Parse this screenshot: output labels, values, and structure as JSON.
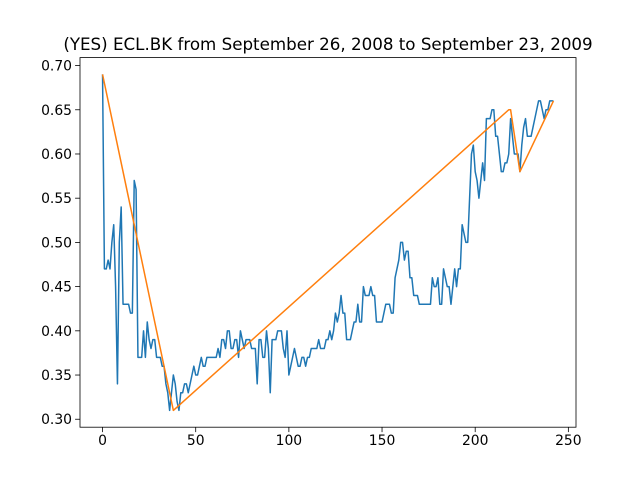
{
  "chart_data": {
    "type": "line",
    "title": "(YES) ECL.BK from September 26, 2008 to September 23, 2009",
    "xlim": [
      -12.1,
      254.1
    ],
    "xticks": [
      0,
      50,
      100,
      150,
      200,
      250
    ],
    "ylim": [
      0.291,
      0.709
    ],
    "yticks": [
      {
        "value": 0.3,
        "label": "0.30"
      },
      0.35,
      {
        "value": 0.4,
        "label": "0.40"
      },
      0.45,
      {
        "value": 0.5,
        "label": "0.50"
      },
      0.55,
      {
        "value": 0.6,
        "label": "0.60"
      },
      0.65,
      {
        "value": 0.7,
        "label": "0.70"
      }
    ],
    "series": [
      {
        "color": "#1f77b4",
        "x": [
          0,
          1,
          2,
          3,
          4,
          5,
          6,
          7,
          8,
          9,
          10,
          11,
          12,
          13,
          14,
          15,
          16,
          17,
          18,
          19,
          20,
          21,
          22,
          23,
          24,
          25,
          26,
          27,
          28,
          29,
          30,
          31,
          32,
          33,
          34,
          35,
          36,
          37,
          38,
          39,
          40,
          41,
          42,
          43,
          44,
          45,
          46,
          47,
          48,
          49,
          50,
          51,
          52,
          53,
          54,
          55,
          56,
          57,
          58,
          59,
          60,
          61,
          62,
          63,
          64,
          65,
          66,
          67,
          68,
          69,
          70,
          71,
          72,
          73,
          74,
          75,
          76,
          77,
          78,
          79,
          80,
          81,
          82,
          83,
          84,
          85,
          86,
          87,
          88,
          89,
          90,
          91,
          92,
          93,
          94,
          95,
          96,
          97,
          98,
          99,
          100,
          101,
          102,
          103,
          104,
          105,
          106,
          107,
          108,
          109,
          110,
          111,
          112,
          113,
          114,
          115,
          116,
          117,
          118,
          119,
          120,
          121,
          122,
          123,
          124,
          125,
          126,
          127,
          128,
          129,
          130,
          131,
          132,
          133,
          134,
          135,
          136,
          137,
          138,
          139,
          140,
          141,
          142,
          143,
          144,
          145,
          146,
          147,
          148,
          149,
          150,
          151,
          152,
          153,
          154,
          155,
          156,
          157,
          158,
          159,
          160,
          161,
          162,
          163,
          164,
          165,
          166,
          167,
          168,
          169,
          170,
          171,
          172,
          173,
          174,
          175,
          176,
          177,
          178,
          179,
          180,
          181,
          182,
          183,
          184,
          185,
          186,
          187,
          188,
          189,
          190,
          191,
          192,
          193,
          194,
          195,
          196,
          197,
          198,
          199,
          200,
          201,
          202,
          203,
          204,
          205,
          206,
          207,
          208,
          209,
          210,
          211,
          212,
          213,
          214,
          215,
          216,
          217,
          218,
          219,
          220,
          221,
          222,
          223,
          224,
          225,
          226,
          227,
          228,
          229,
          230,
          231,
          232,
          233,
          234,
          235,
          236,
          237,
          238,
          239,
          240,
          241,
          242
        ],
        "values": [
          0.69,
          0.47,
          0.47,
          0.48,
          0.47,
          0.5,
          0.52,
          0.45,
          0.34,
          0.5,
          0.54,
          0.43,
          0.43,
          0.43,
          0.43,
          0.42,
          0.42,
          0.57,
          0.56,
          0.37,
          0.37,
          0.37,
          0.4,
          0.37,
          0.41,
          0.39,
          0.38,
          0.39,
          0.39,
          0.37,
          0.37,
          0.37,
          0.36,
          0.36,
          0.34,
          0.33,
          0.31,
          0.33,
          0.35,
          0.34,
          0.32,
          0.31,
          0.33,
          0.33,
          0.34,
          0.34,
          0.33,
          0.34,
          0.35,
          0.36,
          0.35,
          0.35,
          0.36,
          0.37,
          0.36,
          0.36,
          0.37,
          0.37,
          0.37,
          0.37,
          0.37,
          0.37,
          0.38,
          0.37,
          0.39,
          0.39,
          0.38,
          0.4,
          0.4,
          0.38,
          0.38,
          0.39,
          0.39,
          0.37,
          0.4,
          0.39,
          0.38,
          0.39,
          0.39,
          0.39,
          0.38,
          0.38,
          0.38,
          0.34,
          0.39,
          0.39,
          0.37,
          0.37,
          0.4,
          0.38,
          0.33,
          0.39,
          0.39,
          0.39,
          0.4,
          0.4,
          0.4,
          0.38,
          0.37,
          0.4,
          0.35,
          0.36,
          0.37,
          0.38,
          0.37,
          0.36,
          0.36,
          0.37,
          0.37,
          0.36,
          0.37,
          0.37,
          0.38,
          0.38,
          0.38,
          0.38,
          0.39,
          0.38,
          0.38,
          0.38,
          0.39,
          0.39,
          0.4,
          0.39,
          0.4,
          0.42,
          0.41,
          0.42,
          0.44,
          0.42,
          0.42,
          0.39,
          0.39,
          0.39,
          0.4,
          0.41,
          0.41,
          0.43,
          0.41,
          0.41,
          0.45,
          0.44,
          0.44,
          0.44,
          0.45,
          0.44,
          0.44,
          0.41,
          0.41,
          0.41,
          0.41,
          0.42,
          0.43,
          0.43,
          0.43,
          0.42,
          0.42,
          0.46,
          0.47,
          0.48,
          0.5,
          0.5,
          0.48,
          0.49,
          0.49,
          0.46,
          0.46,
          0.44,
          0.44,
          0.44,
          0.43,
          0.43,
          0.43,
          0.43,
          0.43,
          0.43,
          0.43,
          0.46,
          0.45,
          0.45,
          0.46,
          0.43,
          0.43,
          0.47,
          0.46,
          0.45,
          0.45,
          0.43,
          0.45,
          0.47,
          0.45,
          0.47,
          0.47,
          0.52,
          0.51,
          0.5,
          0.5,
          0.55,
          0.6,
          0.61,
          0.58,
          0.57,
          0.55,
          0.57,
          0.59,
          0.57,
          0.64,
          0.64,
          0.64,
          0.65,
          0.65,
          0.62,
          0.62,
          0.6,
          0.58,
          0.58,
          0.59,
          0.59,
          0.6,
          0.64,
          0.62,
          0.6,
          0.6,
          0.6,
          0.58,
          0.61,
          0.63,
          0.64,
          0.62,
          0.62,
          0.62,
          0.63,
          0.64,
          0.65,
          0.66,
          0.66,
          0.65,
          0.64,
          0.65,
          0.65,
          0.66,
          0.66,
          0.66
        ]
      },
      {
        "color": "#ff7f0e",
        "x": [
          0,
          38,
          218,
          219,
          224,
          242
        ],
        "values": [
          0.69,
          0.31,
          0.65,
          0.65,
          0.58,
          0.66
        ]
      }
    ]
  }
}
